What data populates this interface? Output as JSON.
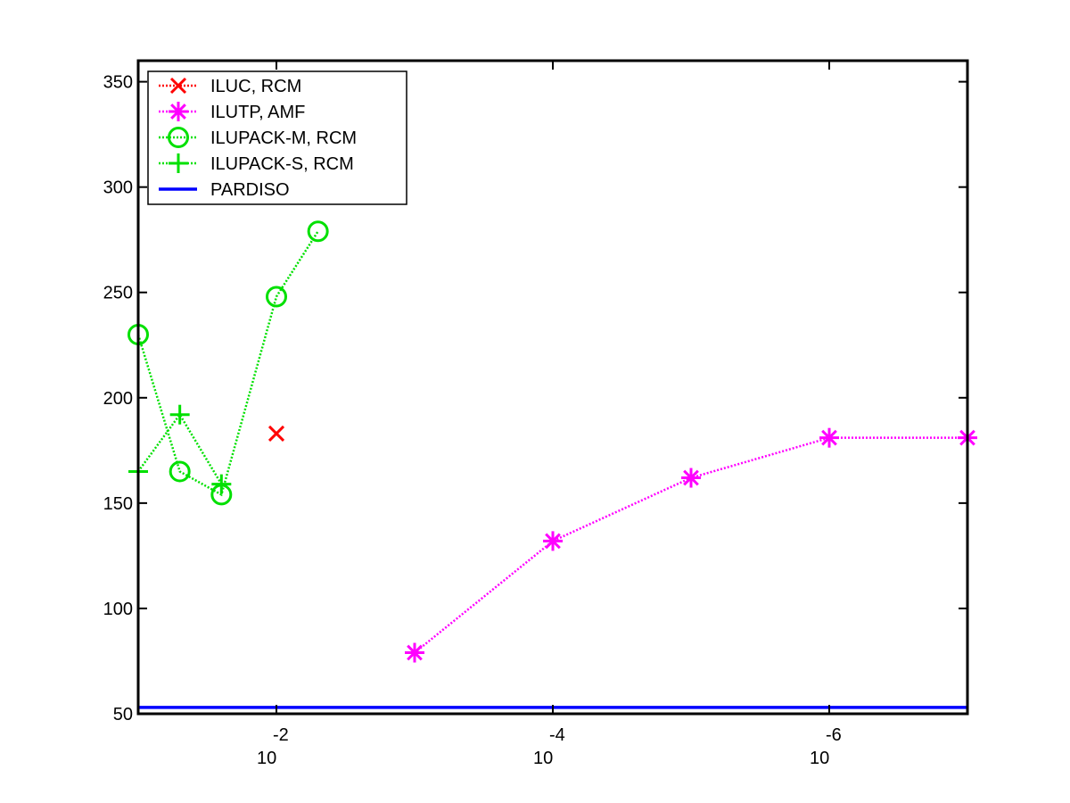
{
  "chart_data": {
    "type": "line",
    "title": "",
    "xlabel": "",
    "ylabel": "",
    "x_scale": "log10-reversed",
    "xlim": [
      0.1,
      1e-07
    ],
    "ylim": [
      50,
      360
    ],
    "grid": false,
    "legend_position": "top-left",
    "x_ticks": [
      {
        "value": 0.01,
        "base": "10",
        "exp": "-2"
      },
      {
        "value": 0.0001,
        "base": "10",
        "exp": "-4"
      },
      {
        "value": 1e-06,
        "base": "10",
        "exp": "-6"
      }
    ],
    "y_ticks": [
      {
        "value": 50,
        "label": "50"
      },
      {
        "value": 100,
        "label": "100"
      },
      {
        "value": 150,
        "label": "150"
      },
      {
        "value": 200,
        "label": "200"
      },
      {
        "value": 250,
        "label": "250"
      },
      {
        "value": 300,
        "label": "300"
      },
      {
        "value": 350,
        "label": "350"
      }
    ],
    "series": [
      {
        "name": "ILUC, RCM",
        "color": "#ff0000",
        "marker": "x",
        "line": "dotted",
        "x": [
          0.01
        ],
        "y": [
          183
        ]
      },
      {
        "name": "ILUTP, AMF",
        "color": "#ff00ff",
        "marker": "star",
        "line": "dotted",
        "x": [
          0.001,
          0.0001,
          1e-05,
          1e-06,
          1e-07
        ],
        "y": [
          79,
          132,
          162,
          181,
          181
        ]
      },
      {
        "name": "ILUPACK-M, RCM",
        "color": "#00e000",
        "marker": "circle",
        "line": "dotted",
        "x": [
          0.1,
          0.05,
          0.025,
          0.01,
          0.005
        ],
        "y": [
          230,
          165,
          154,
          248,
          279
        ]
      },
      {
        "name": "ILUPACK-S, RCM",
        "color": "#00e000",
        "marker": "plus",
        "line": "dotted",
        "x": [
          0.1,
          0.05,
          0.025
        ],
        "y": [
          165,
          192,
          159
        ]
      },
      {
        "name": "PARDISO",
        "color": "#0000ff",
        "marker": "none",
        "line": "solid",
        "x": [
          0.1,
          1e-07
        ],
        "y": [
          53,
          53
        ]
      }
    ]
  }
}
